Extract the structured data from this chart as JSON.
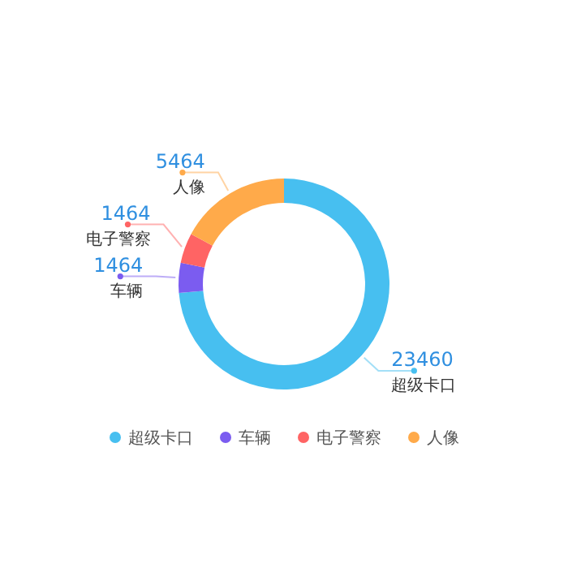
{
  "chart_data": {
    "type": "donut",
    "categories": [
      "超级卡口",
      "车辆",
      "电子警察",
      "人像"
    ],
    "values": [
      23460,
      1464,
      1464,
      5464
    ],
    "colors": [
      "#47bff0",
      "#7b5cf0",
      "#ff6464",
      "#ffaa4a"
    ],
    "data_labels": true,
    "legend": "bottom"
  }
}
